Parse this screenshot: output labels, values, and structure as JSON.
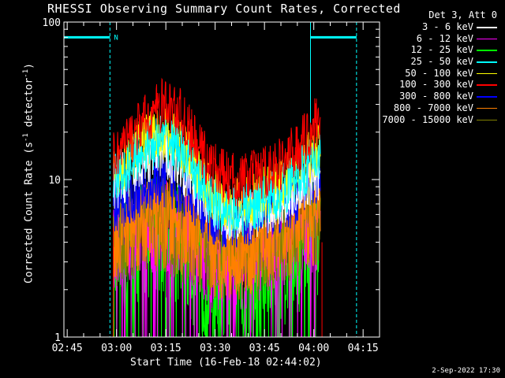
{
  "chart_data": {
    "type": "line",
    "title": "RHESSI Observing Summary Count Rates, Corrected",
    "xlabel": "Start Time (16-Feb-18 02:44:02)",
    "ylabel": "Corrected Count Rate (s",
    "ylabel_sup1": "-1",
    "ylabel_mid": " detector",
    "ylabel_sup2": "-1",
    "ylabel_end": ")",
    "yscale": "log",
    "ylim": [
      1,
      100
    ],
    "xlim_minutes": [
      0,
      96
    ],
    "x_ticks": [
      "02:45",
      "03:00",
      "03:15",
      "03:30",
      "03:45",
      "04:00",
      "04:15"
    ],
    "x_tick_minutes": [
      1,
      16,
      31,
      46,
      61,
      76,
      91
    ],
    "y_ticks": [
      "1",
      "10",
      "100"
    ],
    "legend_title": "Det 3, Att 0",
    "legend_position": "top-right",
    "series": [
      {
        "name": "3 - 6 keV",
        "color": "#ffffff"
      },
      {
        "name": "6 - 12 keV",
        "color": "#ff00ff"
      },
      {
        "name": "12 - 25 keV",
        "color": "#00ff00"
      },
      {
        "name": "25 - 50 keV",
        "color": "#00ffff"
      },
      {
        "name": "50 - 100 keV",
        "color": "#ffff00"
      },
      {
        "name": "100 - 300 keV",
        "color": "#ff0000"
      },
      {
        "name": "300 - 800 keV",
        "color": "#0000ff"
      },
      {
        "name": "800 - 7000 keV",
        "color": "#ff8000"
      },
      {
        "name": "7000 - 15000 keV",
        "color": "#808000"
      }
    ],
    "profiles": {
      "times": [
        15,
        20,
        25,
        30,
        35,
        40,
        45,
        50,
        55,
        60,
        65,
        70,
        75,
        78
      ],
      "100 - 300 keV": [
        14,
        18,
        24,
        30,
        27,
        17,
        12,
        10,
        10,
        11,
        12,
        15,
        20,
        26
      ],
      "50 - 100 keV": [
        11,
        14,
        18,
        20,
        18,
        12,
        8,
        7,
        7,
        8,
        9,
        11,
        14,
        16
      ],
      "3 - 6 keV": [
        9,
        11,
        14,
        15,
        13,
        9,
        7,
        6,
        6,
        6.5,
        7,
        8.5,
        10,
        11
      ],
      "300 - 800 keV": [
        6.5,
        7.5,
        9,
        10,
        9,
        7,
        5.5,
        5.5,
        5.5,
        6,
        6.5,
        7.5,
        9,
        10
      ],
      "800 - 7000 keV": [
        4.5,
        5,
        5.5,
        5.5,
        5,
        4.5,
        3.5,
        3.5,
        3.5,
        4,
        4.5,
        5,
        5.5,
        6
      ],
      "7000 - 15000 keV": [
        4,
        4.5,
        5,
        5,
        4.5,
        4,
        3.5,
        3.5,
        3.5,
        3.5,
        4,
        4.5,
        5,
        5.5
      ],
      "6 - 12 keV": [
        4,
        4.5,
        5,
        5,
        4.5,
        4,
        3,
        3,
        3,
        3.5,
        4,
        4.5,
        5,
        5.5
      ],
      "12 - 25 keV": [
        3,
        4,
        4.5,
        5,
        4,
        3,
        2,
        2,
        2,
        2.5,
        3,
        3.5,
        4,
        5
      ]
    },
    "attenuator_bar_level": 80,
    "attenuator_marker": "N"
  },
  "footer_date": "2-Sep-2022 17:30"
}
